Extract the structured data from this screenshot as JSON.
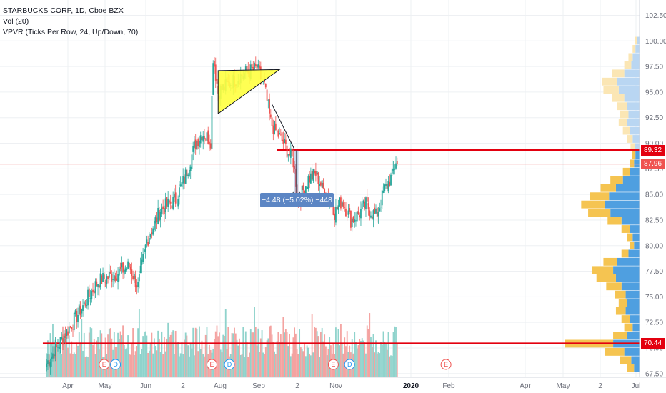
{
  "legend": {
    "line1": "STARBUCKS CORP, 1D, Cboe BZX",
    "line2": "Vol (20)",
    "line3": "VPVR (Ticks Per Row, 24, Up/Down, 70)"
  },
  "measure_label": "−4.48 (−5.02%) −448",
  "price_tags": {
    "resistance": "89.32",
    "last": "87.96",
    "support": "70.44"
  },
  "colors": {
    "up": "#26a69a",
    "down": "#ef5350",
    "vol_up": "#8fd3cc",
    "vol_down": "#f4a3a1",
    "line_red": "#e3000f",
    "triangle_fill": "#ffff40",
    "measure": "#5c86c4"
  },
  "events": [
    {
      "month": "Apr",
      "day": 30,
      "type": "E"
    },
    {
      "month": "May",
      "day": 9,
      "type": "D"
    },
    {
      "month": "Jul",
      "day": 25,
      "type": "E"
    },
    {
      "month": "Aug",
      "day": 8,
      "type": "D"
    },
    {
      "month": "Oct",
      "day": 30,
      "type": "E"
    },
    {
      "month": "Nov",
      "day": 12,
      "type": "D"
    },
    {
      "month": "Jan",
      "day": 28,
      "type": "E"
    }
  ],
  "chart_data": {
    "type": "candlestick",
    "title": "STARBUCKS CORP, 1D, Cboe BZX",
    "ylim": [
      65.6,
      104.0
    ],
    "y_ticks": [
      "67.50",
      "70.00",
      "72.50",
      "75.00",
      "77.50",
      "80.00",
      "82.50",
      "85.00",
      "87.50",
      "90.00",
      "92.50",
      "95.00",
      "97.50",
      "100.00",
      "102.50"
    ],
    "x_ticks": [
      "Apr",
      "May",
      "Jun",
      "2",
      "Aug",
      "Sep",
      "2",
      "Nov",
      "2020",
      "Feb",
      "Apr",
      "May",
      "2",
      "Jul"
    ],
    "x_ticks_bold": [
      "2020"
    ],
    "price_path": [
      [
        "Mar 15",
        68.5
      ],
      [
        "Mar 28",
        71.0
      ],
      [
        "Apr 10",
        73.5
      ],
      [
        "Apr 25",
        76.5
      ],
      [
        "May 10",
        77.3
      ],
      [
        "May 20",
        78.0
      ],
      [
        "May 27",
        76.0
      ],
      [
        "Jun 3",
        80.5
      ],
      [
        "Jun 14",
        83.5
      ],
      [
        "Jun 26",
        84.5
      ],
      [
        "Jul 3",
        86.5
      ],
      [
        "Jul 12",
        90.0
      ],
      [
        "Jul 17",
        91.0
      ],
      [
        "Jul 24",
        90.3
      ],
      [
        "Jul 26",
        98.5
      ],
      [
        "Jul 30",
        95.0
      ],
      [
        "Aug 10",
        96.0
      ],
      [
        "Aug 20",
        96.8
      ],
      [
        "Aug 30",
        97.3
      ],
      [
        "Sep 5",
        95.5
      ],
      [
        "Sep 10",
        92.0
      ],
      [
        "Sep 20",
        90.0
      ],
      [
        "Sep 28",
        88.2
      ],
      [
        "Oct 2",
        84.3
      ],
      [
        "Oct 10",
        86.5
      ],
      [
        "Oct 16",
        87.0
      ],
      [
        "Oct 22",
        85.5
      ],
      [
        "Oct 29",
        84.3
      ],
      [
        "Oct 31",
        83.2
      ],
      [
        "Nov 6",
        84.5
      ],
      [
        "Nov 13",
        82.5
      ],
      [
        "Nov 20",
        83.2
      ],
      [
        "Nov 25",
        84.0
      ],
      [
        "Dec 3",
        82.8
      ],
      [
        "Dec 10",
        85.5
      ],
      [
        "Dec 16",
        86.8
      ],
      [
        "Dec 20",
        88.8
      ]
    ],
    "last_price": 87.96,
    "horizontal_lines": [
      {
        "price": 89.32,
        "from": "Sep 15",
        "color": "#e3000f"
      },
      {
        "price": 70.44,
        "from": "Mar 12",
        "color": "#e3000f"
      },
      {
        "price": 87.96,
        "from": "Mar 12",
        "color": "#f4a3a1"
      }
    ],
    "triangle_pattern": [
      [
        "Jul 30",
        97.1
      ],
      [
        "Sep 17",
        97.2
      ],
      [
        "Jul 30",
        92.9
      ]
    ],
    "trendline": [
      [
        "Sep 11",
        93.8
      ],
      [
        "Sep 29",
        89.4
      ]
    ],
    "measure": {
      "from_date": "Sep 29",
      "to_date": "Oct 1",
      "from_price": 89.3,
      "to_price": 84.8,
      "change": -4.48,
      "percent": -5.02
    },
    "volume_profile": {
      "price_levels": [
        68.0,
        68.8,
        69.6,
        70.4,
        71.2,
        72.0,
        72.8,
        73.6,
        74.4,
        75.2,
        76.0,
        76.8,
        77.6,
        78.4,
        79.2,
        80.0,
        80.8,
        81.6,
        82.4,
        83.2,
        84.0,
        84.8,
        85.6,
        86.4,
        87.2,
        88.0,
        88.8,
        89.6,
        90.4,
        91.2,
        92.0,
        92.8,
        93.6,
        94.4,
        95.2,
        96.0,
        96.8,
        97.6,
        98.4,
        99.2,
        100.0
      ],
      "up_volume": [
        8,
        12,
        22,
        38,
        18,
        10,
        14,
        20,
        18,
        20,
        26,
        34,
        38,
        32,
        16,
        8,
        10,
        14,
        26,
        42,
        50,
        44,
        34,
        24,
        14,
        8,
        6,
        7,
        10,
        14,
        18,
        16,
        18,
        22,
        30,
        32,
        22,
        12,
        10,
        6,
        4
      ],
      "down_volume": [
        10,
        16,
        28,
        70,
        20,
        12,
        12,
        14,
        12,
        16,
        22,
        28,
        30,
        20,
        10,
        6,
        8,
        12,
        20,
        32,
        34,
        28,
        22,
        18,
        10,
        6,
        5,
        6,
        8,
        10,
        12,
        12,
        14,
        18,
        22,
        22,
        18,
        10,
        6,
        4,
        3
      ]
    }
  }
}
